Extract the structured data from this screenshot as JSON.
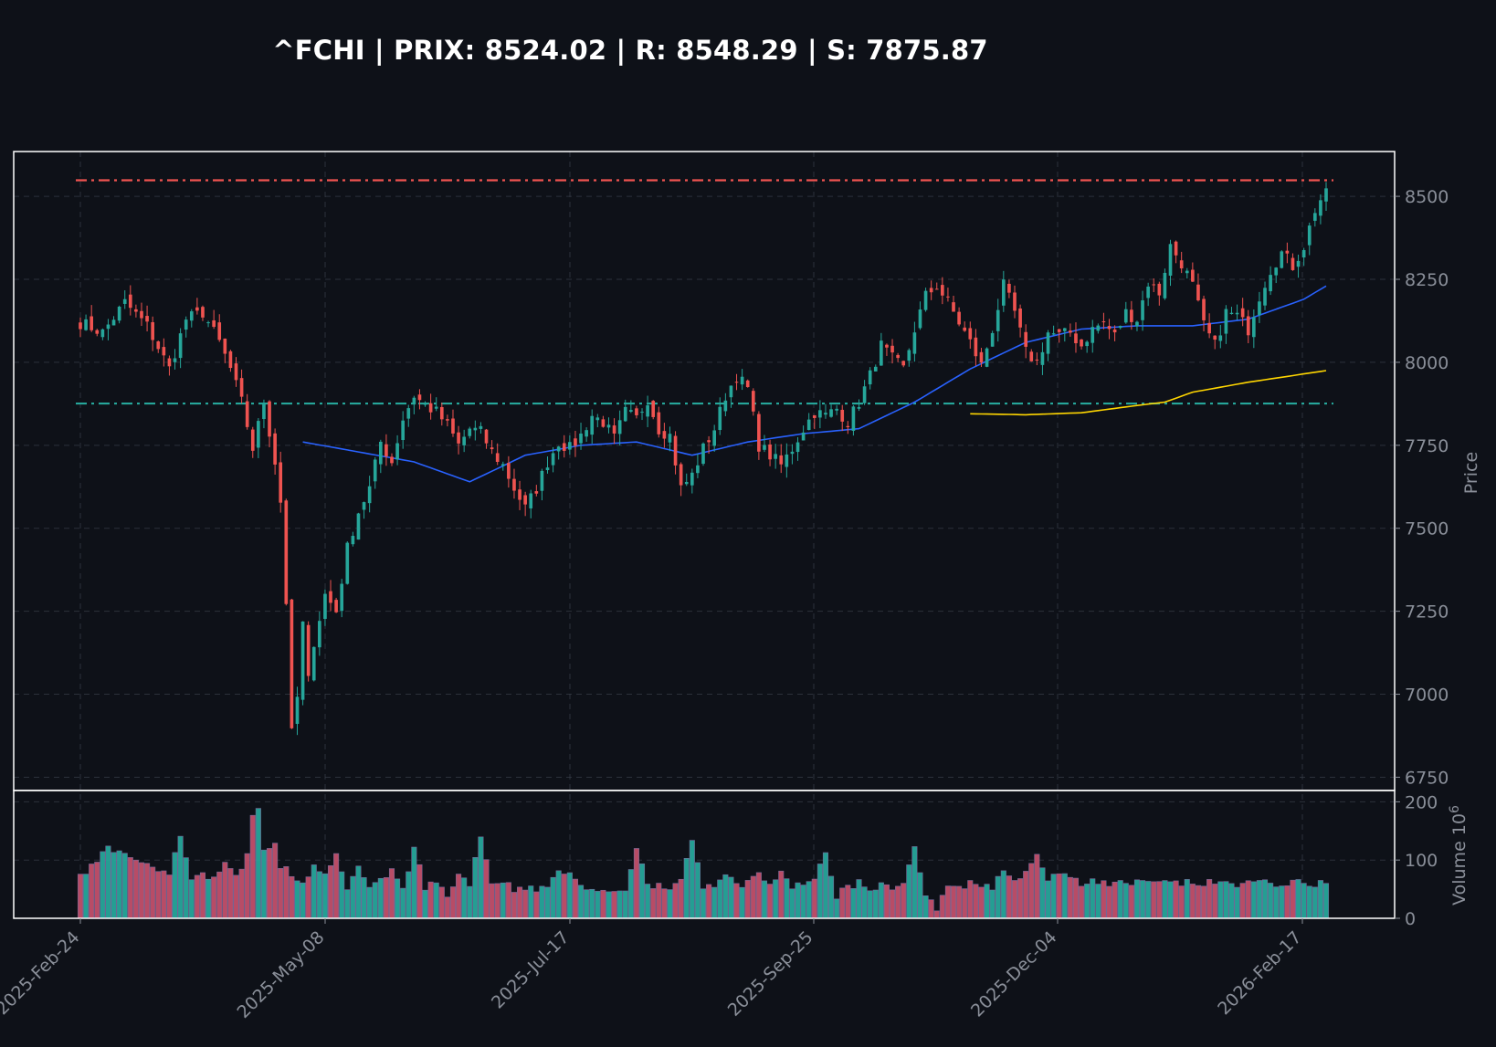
{
  "title": "^FCHI | PRIX: 8524.02 | R: 8548.29 | S: 7875.87",
  "colors": {
    "background": "#0e1118",
    "up": "#26a69a",
    "down": "#ef5350",
    "ma_short": "#2962ff",
    "ma_long": "#ffd600",
    "resistance": "#ef5350",
    "support": "#26a69a",
    "grid": "#3a3f4a",
    "frame": "#ffffff",
    "text": "#8a8f99"
  },
  "chart_data": {
    "type": "candlestick",
    "title": "^FCHI | PRIX: 8524.02 | R: 8548.29 | S: 7875.87",
    "ylabel": "Price",
    "volume_label": "Volume  10^6",
    "volume_label_base": "Volume  10",
    "volume_label_exp": "6",
    "ylim": [
      6710,
      8635
    ],
    "yticks": [
      6750,
      7000,
      7250,
      7500,
      7750,
      8000,
      8250,
      8500
    ],
    "volume_ylim": [
      0,
      210
    ],
    "volume_ticks": [
      0,
      100,
      200
    ],
    "xtick_labels": [
      "2025-Feb-24",
      "2025-May-08",
      "2025-Jul-17",
      "2025-Sep-25",
      "2025-Dec-04",
      "2026-Feb-17"
    ],
    "grid": true,
    "last_price": 8524.02,
    "resistance": 8548.29,
    "support": 7875.87,
    "series_anchors": {
      "close": [
        [
          0,
          8120
        ],
        [
          4,
          8090
        ],
        [
          8,
          8180
        ],
        [
          12,
          8110
        ],
        [
          16,
          7980
        ],
        [
          19,
          8130
        ],
        [
          22,
          8150
        ],
        [
          25,
          8060
        ],
        [
          27,
          7980
        ],
        [
          29,
          7880
        ],
        [
          31,
          7740
        ],
        [
          33,
          7880
        ],
        [
          35,
          7700
        ],
        [
          36,
          7580
        ],
        [
          37,
          7280
        ],
        [
          38,
          6880
        ],
        [
          39,
          6990
        ],
        [
          40,
          7210
        ],
        [
          41,
          7040
        ],
        [
          42,
          7160
        ],
        [
          44,
          7300
        ],
        [
          46,
          7250
        ],
        [
          48,
          7440
        ],
        [
          50,
          7550
        ],
        [
          52,
          7620
        ],
        [
          54,
          7760
        ],
        [
          56,
          7700
        ],
        [
          58,
          7830
        ],
        [
          60,
          7900
        ],
        [
          62,
          7870
        ],
        [
          64,
          7850
        ],
        [
          66,
          7810
        ],
        [
          68,
          7750
        ],
        [
          70,
          7800
        ],
        [
          72,
          7790
        ],
        [
          74,
          7730
        ],
        [
          76,
          7690
        ],
        [
          78,
          7620
        ],
        [
          80,
          7560
        ],
        [
          82,
          7620
        ],
        [
          84,
          7700
        ],
        [
          86,
          7760
        ],
        [
          88,
          7740
        ],
        [
          90,
          7780
        ],
        [
          92,
          7840
        ],
        [
          94,
          7820
        ],
        [
          96,
          7770
        ],
        [
          98,
          7850
        ],
        [
          100,
          7830
        ],
        [
          102,
          7890
        ],
        [
          104,
          7800
        ],
        [
          106,
          7780
        ],
        [
          108,
          7620
        ],
        [
          110,
          7660
        ],
        [
          112,
          7740
        ],
        [
          114,
          7800
        ],
        [
          116,
          7900
        ],
        [
          118,
          7960
        ],
        [
          120,
          7920
        ],
        [
          122,
          7750
        ],
        [
          124,
          7720
        ],
        [
          126,
          7690
        ],
        [
          128,
          7740
        ],
        [
          130,
          7800
        ],
        [
          132,
          7850
        ],
        [
          134,
          7840
        ],
        [
          136,
          7860
        ],
        [
          138,
          7820
        ],
        [
          140,
          7880
        ],
        [
          142,
          7960
        ],
        [
          144,
          8050
        ],
        [
          146,
          8010
        ],
        [
          148,
          7980
        ],
        [
          150,
          8100
        ],
        [
          152,
          8200
        ],
        [
          154,
          8230
        ],
        [
          156,
          8180
        ],
        [
          158,
          8120
        ],
        [
          160,
          8060
        ],
        [
          162,
          7990
        ],
        [
          164,
          8100
        ],
        [
          166,
          8230
        ],
        [
          168,
          8150
        ],
        [
          170,
          8030
        ],
        [
          172,
          8000
        ],
        [
          174,
          8090
        ],
        [
          176,
          8080
        ],
        [
          178,
          8090
        ],
        [
          180,
          8050
        ],
        [
          182,
          8100
        ],
        [
          184,
          8120
        ],
        [
          186,
          8080
        ],
        [
          188,
          8150
        ],
        [
          190,
          8130
        ],
        [
          192,
          8240
        ],
        [
          194,
          8210
        ],
        [
          196,
          8350
        ],
        [
          198,
          8300
        ],
        [
          200,
          8230
        ],
        [
          202,
          8110
        ],
        [
          204,
          8050
        ],
        [
          206,
          8150
        ],
        [
          208,
          8140
        ],
        [
          210,
          8100
        ],
        [
          212,
          8200
        ],
        [
          214,
          8280
        ],
        [
          216,
          8330
        ],
        [
          218,
          8290
        ],
        [
          220,
          8350
        ],
        [
          222,
          8460
        ],
        [
          224,
          8520
        ]
      ],
      "ma_short": [
        [
          40,
          7760
        ],
        [
          60,
          7700
        ],
        [
          70,
          7640
        ],
        [
          80,
          7720
        ],
        [
          90,
          7750
        ],
        [
          100,
          7760
        ],
        [
          110,
          7720
        ],
        [
          120,
          7760
        ],
        [
          130,
          7785
        ],
        [
          140,
          7800
        ],
        [
          150,
          7880
        ],
        [
          160,
          7980
        ],
        [
          170,
          8060
        ],
        [
          180,
          8100
        ],
        [
          190,
          8110
        ],
        [
          200,
          8110
        ],
        [
          210,
          8130
        ],
        [
          220,
          8190
        ],
        [
          224,
          8230
        ]
      ],
      "ma_long": [
        [
          160,
          7845
        ],
        [
          170,
          7842
        ],
        [
          180,
          7848
        ],
        [
          190,
          7870
        ],
        [
          195,
          7880
        ],
        [
          200,
          7910
        ],
        [
          210,
          7940
        ],
        [
          220,
          7965
        ],
        [
          224,
          7975
        ]
      ],
      "volume": [
        [
          0,
          72
        ],
        [
          3,
          95
        ],
        [
          5,
          130
        ],
        [
          7,
          110
        ],
        [
          10,
          100
        ],
        [
          14,
          75
        ],
        [
          16,
          80
        ],
        [
          18,
          140
        ],
        [
          20,
          70
        ],
        [
          24,
          75
        ],
        [
          26,
          95
        ],
        [
          28,
          70
        ],
        [
          30,
          110
        ],
        [
          31,
          175
        ],
        [
          32,
          195
        ],
        [
          33,
          115
        ],
        [
          35,
          125
        ],
        [
          36,
          90
        ],
        [
          38,
          75
        ],
        [
          40,
          60
        ],
        [
          42,
          90
        ],
        [
          44,
          70
        ],
        [
          46,
          108
        ],
        [
          48,
          55
        ],
        [
          50,
          85
        ],
        [
          52,
          60
        ],
        [
          54,
          65
        ],
        [
          56,
          80
        ],
        [
          58,
          45
        ],
        [
          60,
          120
        ],
        [
          62,
          55
        ],
        [
          64,
          60
        ],
        [
          66,
          40
        ],
        [
          68,
          75
        ],
        [
          70,
          60
        ],
        [
          72,
          145
        ],
        [
          74,
          60
        ],
        [
          76,
          65
        ],
        [
          78,
          50
        ],
        [
          80,
          55
        ],
        [
          82,
          45
        ],
        [
          84,
          60
        ],
        [
          86,
          75
        ],
        [
          88,
          85
        ],
        [
          90,
          55
        ],
        [
          92,
          45
        ],
        [
          94,
          50
        ],
        [
          96,
          40
        ],
        [
          98,
          50
        ],
        [
          100,
          125
        ],
        [
          102,
          55
        ],
        [
          104,
          60
        ],
        [
          106,
          55
        ],
        [
          108,
          60
        ],
        [
          110,
          135
        ],
        [
          112,
          55
        ],
        [
          114,
          60
        ],
        [
          116,
          80
        ],
        [
          118,
          55
        ],
        [
          120,
          65
        ],
        [
          122,
          75
        ],
        [
          124,
          60
        ],
        [
          126,
          75
        ],
        [
          128,
          55
        ],
        [
          130,
          60
        ],
        [
          132,
          65
        ],
        [
          134,
          110
        ],
        [
          136,
          40
        ],
        [
          138,
          55
        ],
        [
          140,
          60
        ],
        [
          142,
          50
        ],
        [
          144,
          55
        ],
        [
          146,
          55
        ],
        [
          148,
          60
        ],
        [
          150,
          120
        ],
        [
          152,
          40
        ],
        [
          154,
          15
        ],
        [
          156,
          55
        ],
        [
          158,
          55
        ],
        [
          160,
          60
        ],
        [
          162,
          60
        ],
        [
          164,
          55
        ],
        [
          166,
          80
        ],
        [
          168,
          65
        ],
        [
          170,
          85
        ],
        [
          172,
          105
        ],
        [
          174,
          70
        ],
        [
          176,
          80
        ],
        [
          178,
          70
        ],
        [
          180,
          55
        ],
        [
          182,
          70
        ],
        [
          184,
          60
        ]
      ]
    }
  }
}
